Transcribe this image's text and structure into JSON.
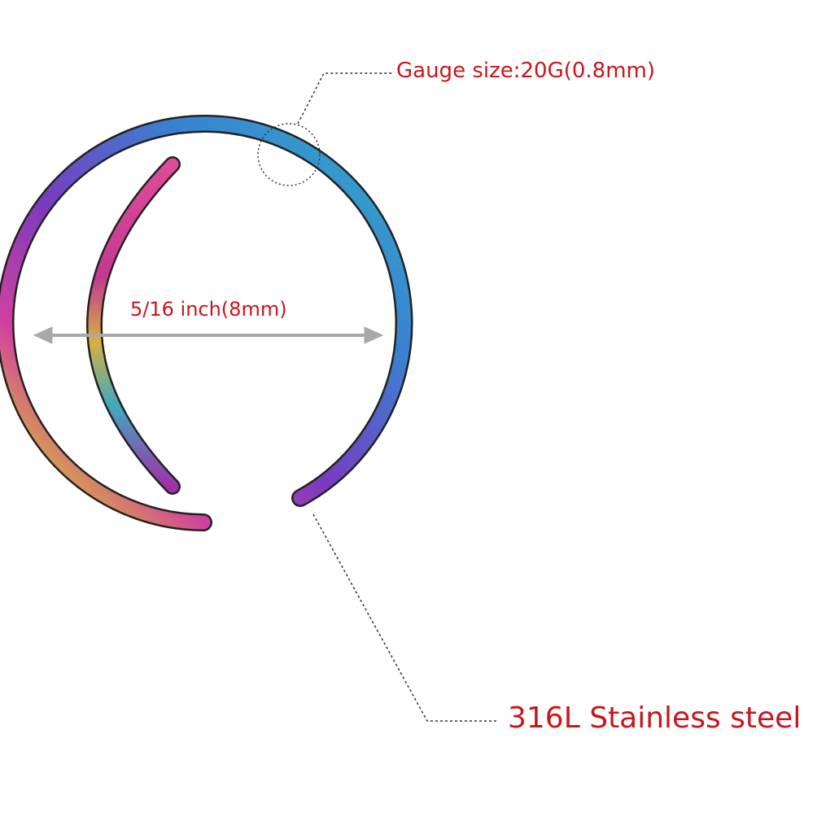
{
  "labels": {
    "gauge": "Gauge size:20G(0.8mm)",
    "diameter": "5/16 inch(8mm)",
    "material": "316L Stainless steel"
  },
  "colors": {
    "label_text": "#c8161d",
    "arrow": "#a8a8a8",
    "leader_line": "#333333",
    "ring_gradient": [
      "#e0409a",
      "#8a3bc0",
      "#3a7fd0",
      "#38b8c8",
      "#d8b040"
    ]
  }
}
